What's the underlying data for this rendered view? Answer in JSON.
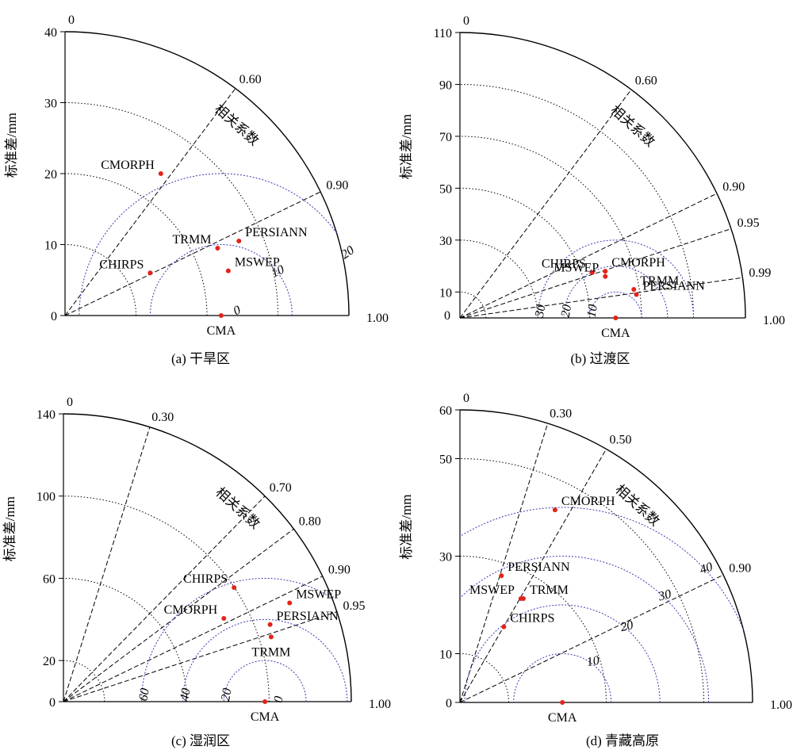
{
  "chart_data": [
    {
      "type": "taylor",
      "caption": "(a) 干旱区",
      "ylabel": "标准差/mm",
      "corr_title": "相关系数",
      "std_ticks": [
        "0",
        "10",
        "20",
        "30",
        "40"
      ],
      "std_max": 40,
      "origin_label": "0",
      "corr_lines": [
        {
          "r": 0.6,
          "label": "0.60"
        },
        {
          "r": 0.9,
          "label": "0.90"
        }
      ],
      "corr_end_label": "1.00",
      "rms_circles": [
        {
          "value": 20,
          "label": "20",
          "label_angle": 25
        },
        {
          "value": 10,
          "label": "10",
          "label_angle": 35
        },
        {
          "value": 0,
          "label": "0",
          "label_angle": 35
        }
      ],
      "ref": {
        "name": "CMA",
        "std": 22
      },
      "points": [
        {
          "name": "CMORPH",
          "x": 13.5,
          "y": 20,
          "label_pos": "left"
        },
        {
          "name": "TRMM",
          "x": 21.5,
          "y": 9.5,
          "label_pos": "left"
        },
        {
          "name": "PERSIANN",
          "x": 24.5,
          "y": 10.5,
          "label_pos": "right"
        },
        {
          "name": "CHIRPS",
          "x": 12,
          "y": 6,
          "label_pos": "left"
        },
        {
          "name": "MSWEP",
          "x": 23,
          "y": 6.3,
          "label_pos": "right"
        }
      ]
    },
    {
      "type": "taylor",
      "caption": "(b) 过渡区",
      "ylabel": "标准差/mm",
      "corr_title": "相关系数",
      "std_ticks": [
        "10",
        "30",
        "50",
        "70",
        "90",
        "110"
      ],
      "std_max": 110,
      "origin_label": "0",
      "origin_tick": "0",
      "corr_lines": [
        {
          "r": 0.6,
          "label": "0.60"
        },
        {
          "r": 0.9,
          "label": "0.90"
        },
        {
          "r": 0.95,
          "label": "0.95"
        },
        {
          "r": 0.99,
          "label": "0.99"
        }
      ],
      "corr_end_label": "1.00",
      "rms_circles": [
        {
          "value": 30,
          "label": "30",
          "label_angle": 160
        },
        {
          "value": 20,
          "label": "20",
          "label_angle": 160
        },
        {
          "value": 10,
          "label": "10",
          "label_angle": 160
        }
      ],
      "ref": {
        "name": "CMA",
        "std": 60
      },
      "points": [
        {
          "name": "CHIRPS",
          "x": 51,
          "y": 17.5,
          "label_pos": "left"
        },
        {
          "name": "CMORPH",
          "x": 56,
          "y": 18,
          "label_pos": "right"
        },
        {
          "name": "MSWEP",
          "x": 56,
          "y": 16,
          "label_pos": "left"
        },
        {
          "name": "TRMM",
          "x": 67,
          "y": 11,
          "label_pos": "right"
        },
        {
          "name": "PERSIANN",
          "x": 68,
          "y": 9,
          "label_pos": "right"
        }
      ]
    },
    {
      "type": "taylor",
      "caption": "(c) 湿润区",
      "ylabel": "标准差/mm",
      "corr_title": "相关系数",
      "std_ticks": [
        "0",
        "20",
        "60",
        "100",
        "140"
      ],
      "std_max": 140,
      "origin_label": "0",
      "corr_lines": [
        {
          "r": 0.3,
          "label": "0.30"
        },
        {
          "r": 0.7,
          "label": "0.70"
        },
        {
          "r": 0.8,
          "label": "0.80"
        },
        {
          "r": 0.9,
          "label": "0.90"
        },
        {
          "r": 0.95,
          "label": "0.95"
        }
      ],
      "corr_end_label": "1.00",
      "rms_circles": [
        {
          "value": 60,
          "label": "60",
          "label_angle": 160
        },
        {
          "value": 40,
          "label": "40",
          "label_angle": 160
        },
        {
          "value": 20,
          "label": "20",
          "label_angle": 160
        },
        {
          "value": 0,
          "label": "0",
          "label_angle": 160
        }
      ],
      "ref": {
        "name": "CMA",
        "std": 98
      },
      "points": [
        {
          "name": "CHIRPS",
          "x": 83,
          "y": 55.5,
          "label_pos": "left"
        },
        {
          "name": "MSWEP",
          "x": 110,
          "y": 48,
          "label_pos": "right"
        },
        {
          "name": "CMORPH",
          "x": 78,
          "y": 40.5,
          "label_pos": "left"
        },
        {
          "name": "PERSIANN",
          "x": 100.5,
          "y": 37.5,
          "label_pos": "right"
        },
        {
          "name": "TRMM",
          "x": 101,
          "y": 31.5,
          "label_pos": "below"
        }
      ]
    },
    {
      "type": "taylor",
      "caption": "(d) 青藏高原",
      "ylabel": "标准差/mm",
      "corr_title": "相关系数",
      "std_ticks": [
        "0",
        "10",
        "30",
        "50",
        "60"
      ],
      "std_max": 60,
      "origin_label": "0",
      "corr_lines": [
        {
          "r": 0.3,
          "label": "0.30"
        },
        {
          "r": 0.5,
          "label": "0.50"
        },
        {
          "r": 0.9,
          "label": "0.90"
        }
      ],
      "corr_end_label": "1.00",
      "rms_circles": [
        {
          "value": 40,
          "label": "40",
          "label_angle": 42
        },
        {
          "value": 30,
          "label": "30",
          "label_angle": 45
        },
        {
          "value": 20,
          "label": "20",
          "label_angle": 48
        },
        {
          "value": 10,
          "label": "10",
          "label_angle": 50
        }
      ],
      "ref": {
        "name": "CMA",
        "std": 21
      },
      "points": [
        {
          "name": "CMORPH",
          "x": 19.5,
          "y": 39.5,
          "label_pos": "right"
        },
        {
          "name": "PERSIANN",
          "x": 8.5,
          "y": 26,
          "label_pos": "right"
        },
        {
          "name": "MSWEP",
          "x": 12.5,
          "y": 21.3,
          "label_pos": "left"
        },
        {
          "name": "TRMM",
          "x": 13,
          "y": 21.3,
          "label_pos": "right"
        },
        {
          "name": "CHIRPS",
          "x": 9,
          "y": 15.5,
          "label_pos": "right"
        }
      ]
    }
  ]
}
